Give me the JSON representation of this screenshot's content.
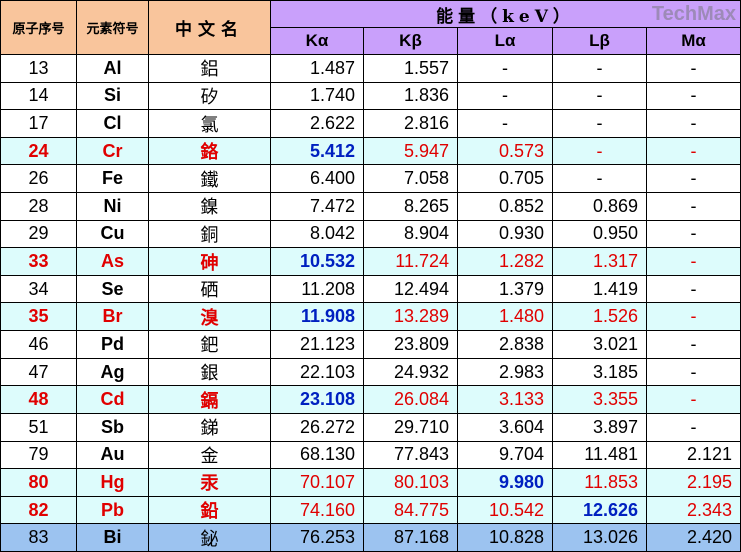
{
  "table": {
    "header": {
      "columns": [
        "原子序号",
        "元素符号",
        "中文名"
      ],
      "energy": "能量（keV）",
      "lines": [
        "Kα",
        "Kβ",
        "Lα",
        "Lβ",
        "Mα"
      ]
    },
    "watermark": "TechMax",
    "rows": [
      [
        "13",
        "Al",
        "鋁",
        "1.487",
        "1.557",
        "-",
        "-",
        "-"
      ],
      [
        "14",
        "Si",
        "矽",
        "1.740",
        "1.836",
        "-",
        "-",
        "-"
      ],
      [
        "17",
        "Cl",
        "氯",
        "2.622",
        "2.816",
        "-",
        "-",
        "-"
      ],
      [
        "24",
        "Cr",
        "鉻",
        "5.412",
        "5.947",
        "0.573",
        "-",
        "-"
      ],
      [
        "26",
        "Fe",
        "鐵",
        "6.400",
        "7.058",
        "0.705",
        "-",
        "-"
      ],
      [
        "28",
        "Ni",
        "鎳",
        "7.472",
        "8.265",
        "0.852",
        "0.869",
        "-"
      ],
      [
        "29",
        "Cu",
        "銅",
        "8.042",
        "8.904",
        "0.930",
        "0.950",
        "-"
      ],
      [
        "33",
        "As",
        "砷",
        "10.532",
        "11.724",
        "1.282",
        "1.317",
        "-"
      ],
      [
        "34",
        "Se",
        "硒",
        "11.208",
        "12.494",
        "1.379",
        "1.419",
        "-"
      ],
      [
        "35",
        "Br",
        "溴",
        "11.908",
        "13.289",
        "1.480",
        "1.526",
        "-"
      ],
      [
        "46",
        "Pd",
        "鈀",
        "21.123",
        "23.809",
        "2.838",
        "3.021",
        "-"
      ],
      [
        "47",
        "Ag",
        "銀",
        "22.103",
        "24.932",
        "2.983",
        "3.185",
        "-"
      ],
      [
        "48",
        "Cd",
        "鎘",
        "23.108",
        "26.084",
        "3.133",
        "3.355",
        "-"
      ],
      [
        "51",
        "Sb",
        "銻",
        "26.272",
        "29.710",
        "3.604",
        "3.897",
        "-"
      ],
      [
        "79",
        "Au",
        "金",
        "68.130",
        "77.843",
        "9.704",
        "11.481",
        "2.121"
      ],
      [
        "80",
        "Hg",
        "汞",
        "70.107",
        "80.103",
        "9.980",
        "11.853",
        "2.195"
      ],
      [
        "82",
        "Pb",
        "鉛",
        "74.160",
        "84.775",
        "10.542",
        "12.626",
        "2.343"
      ],
      [
        "83",
        "Bi",
        "鉍",
        "76.253",
        "87.168",
        "10.828",
        "13.026",
        "2.420"
      ]
    ],
    "highlight_rows": [
      3,
      7,
      9,
      12,
      15,
      16
    ],
    "last_row_color": "#9cc3f0",
    "emphasis_cells": [
      [
        3,
        3
      ],
      [
        7,
        3
      ],
      [
        9,
        3
      ],
      [
        12,
        3
      ],
      [
        15,
        5
      ],
      [
        16,
        6
      ]
    ]
  }
}
